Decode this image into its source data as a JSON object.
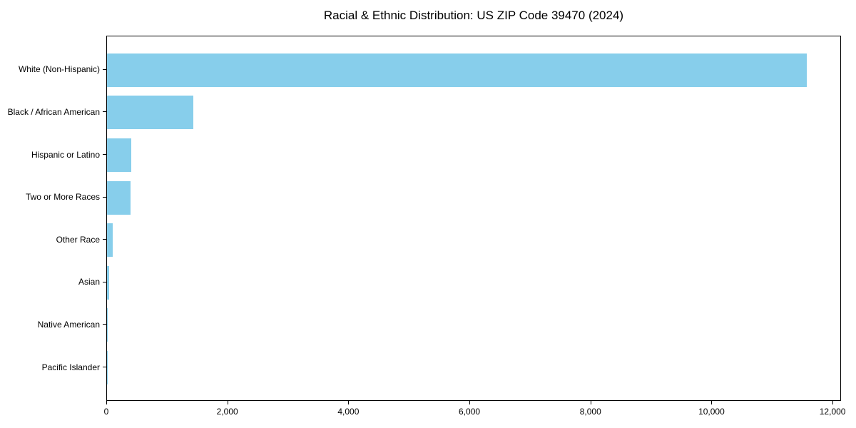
{
  "chart_data": {
    "type": "bar",
    "orientation": "horizontal",
    "title": "Racial & Ethnic Distribution: US ZIP Code 39470 (2024)",
    "categories": [
      "White (Non-Hispanic)",
      "Black / African American",
      "Hispanic or Latino",
      "Two or More Races",
      "Other Race",
      "Asian",
      "Native American",
      "Pacific Islander"
    ],
    "values": [
      11585,
      1425,
      400,
      390,
      95,
      35,
      12,
      2
    ],
    "xlabel": "",
    "ylabel": "",
    "xlim": [
      0,
      12140
    ],
    "xticks": [
      {
        "value": 0,
        "label": "0"
      },
      {
        "value": 2000,
        "label": "2,000"
      },
      {
        "value": 4000,
        "label": "4,000"
      },
      {
        "value": 6000,
        "label": "6,000"
      },
      {
        "value": 8000,
        "label": "8,000"
      },
      {
        "value": 10000,
        "label": "10,000"
      },
      {
        "value": 12000,
        "label": "12,000"
      }
    ],
    "grid": false,
    "legend": "none",
    "colors": {
      "bar": "#87CEEB",
      "axis": "#000000",
      "text": "#000000",
      "background": "#FFFFFF"
    }
  }
}
